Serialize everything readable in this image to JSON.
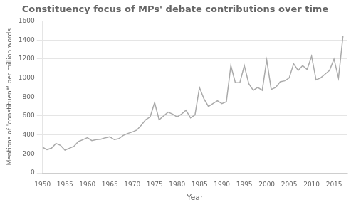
{
  "chart_data": {
    "type": "line",
    "title": "Constituency focus of MPs' debate contributions over time",
    "xlabel": "Year",
    "ylabel": "Mentions of 'constituen*' per million words",
    "x": [
      1950,
      1951,
      1952,
      1953,
      1954,
      1955,
      1956,
      1957,
      1958,
      1959,
      1960,
      1961,
      1962,
      1963,
      1964,
      1965,
      1966,
      1967,
      1968,
      1969,
      1970,
      1971,
      1972,
      1973,
      1974,
      1975,
      1976,
      1977,
      1978,
      1979,
      1980,
      1981,
      1982,
      1983,
      1984,
      1985,
      1986,
      1987,
      1988,
      1989,
      1990,
      1991,
      1992,
      1993,
      1994,
      1995,
      1996,
      1997,
      1998,
      1999,
      2000,
      2001,
      2002,
      2003,
      2004,
      2005,
      2006,
      2007,
      2008,
      2009,
      2010,
      2011,
      2012,
      2013,
      2014,
      2015,
      2016,
      2017
    ],
    "values": [
      270,
      245,
      260,
      310,
      290,
      240,
      260,
      280,
      330,
      350,
      370,
      340,
      350,
      355,
      370,
      380,
      350,
      360,
      395,
      415,
      430,
      450,
      500,
      560,
      590,
      740,
      560,
      600,
      640,
      620,
      590,
      620,
      660,
      580,
      610,
      900,
      780,
      700,
      730,
      760,
      730,
      750,
      1130,
      950,
      950,
      1130,
      940,
      870,
      900,
      870,
      1190,
      880,
      900,
      960,
      970,
      1000,
      1150,
      1080,
      1130,
      1090,
      1230,
      980,
      1000,
      1040,
      1080,
      1200,
      1000,
      1440
    ],
    "color": "#aaaaaa",
    "xlim": [
      1950,
      2018
    ],
    "ylim": [
      0,
      1600
    ],
    "xticks": [
      1950,
      1955,
      1960,
      1965,
      1970,
      1975,
      1980,
      1985,
      1990,
      1995,
      2000,
      2005,
      2010,
      2015
    ],
    "yticks": [
      0,
      200,
      400,
      600,
      800,
      1000,
      1200,
      1400,
      1600
    ],
    "grid": "y"
  }
}
